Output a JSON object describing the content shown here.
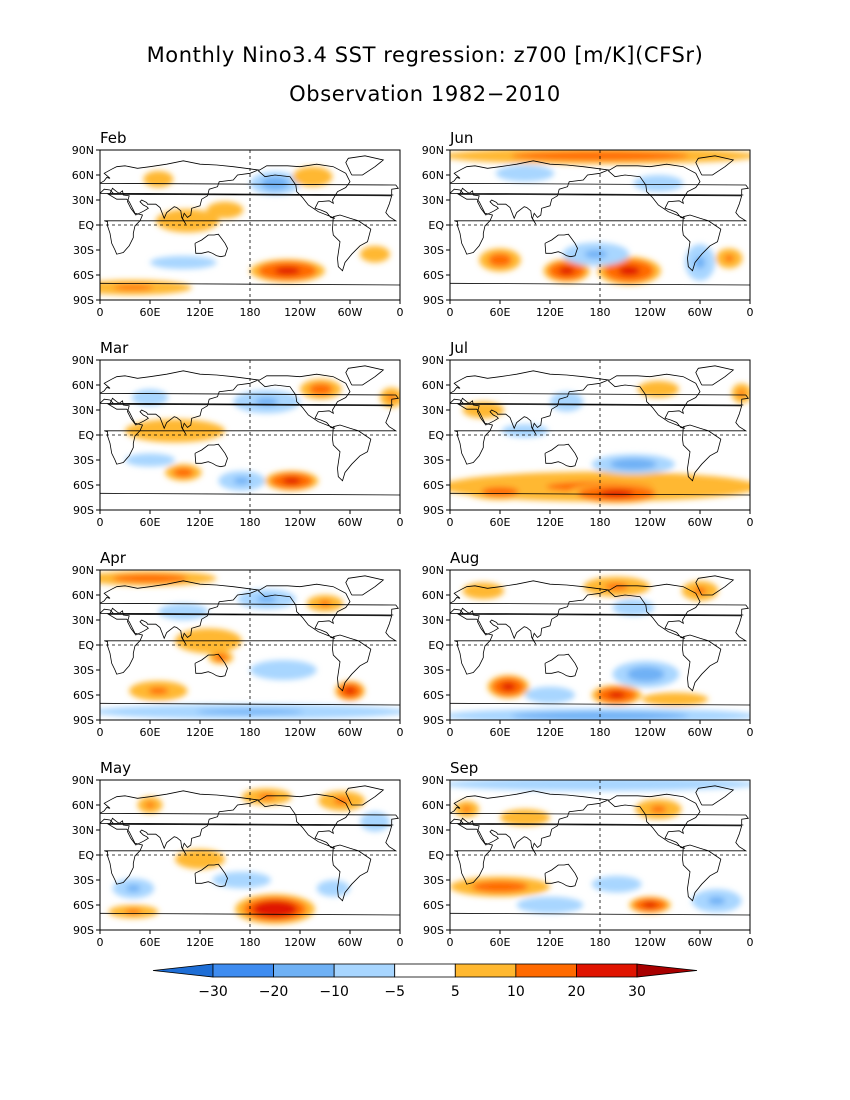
{
  "chart_data": {
    "type": "heatmap",
    "title": "Monthly Nino3.4 SST regression: z700 [m/K](CFSr)",
    "subtitle": "Observation 1982−2010",
    "x_tick_labels": [
      "0",
      "60E",
      "120E",
      "180",
      "120W",
      "60W",
      "0"
    ],
    "y_tick_labels": [
      "90N",
      "60N",
      "30N",
      "EQ",
      "30S",
      "60S",
      "90S"
    ],
    "xlim": [
      0,
      360
    ],
    "ylim": [
      -90,
      90
    ],
    "reference_lines": [
      "EQ",
      "180"
    ],
    "colorbar": {
      "tick_labels": [
        "−30",
        "−20",
        "−10",
        "−5",
        "5",
        "10",
        "20",
        "30"
      ],
      "levels": [
        -30,
        -20,
        -10,
        -5,
        5,
        10,
        20,
        30
      ],
      "colors": [
        "#1e6ed6",
        "#3e8cf0",
        "#6fb1f5",
        "#a8d6ff",
        "#ffffff",
        "#ffb830",
        "#ff6a00",
        "#e01400",
        "#a80000"
      ]
    },
    "panels": [
      {
        "label": "Feb",
        "anomalies": [
          {
            "lon": 105,
            "lat": 5,
            "rlon": 38,
            "rlat": 14,
            "v": 8
          },
          {
            "lon": 150,
            "lat": 18,
            "rlon": 22,
            "rlat": 10,
            "v": 6
          },
          {
            "lon": 210,
            "lat": 50,
            "rlon": 30,
            "rlat": 14,
            "v": -14
          },
          {
            "lon": 255,
            "lat": 58,
            "rlon": 24,
            "rlat": 12,
            "v": 9
          },
          {
            "lon": 70,
            "lat": 55,
            "rlon": 18,
            "rlat": 10,
            "v": 7
          },
          {
            "lon": 225,
            "lat": -55,
            "rlon": 45,
            "rlat": 14,
            "v": 23
          },
          {
            "lon": 40,
            "lat": -75,
            "rlon": 70,
            "rlat": 9,
            "v": 10
          },
          {
            "lon": 100,
            "lat": -45,
            "rlon": 40,
            "rlat": 8,
            "v": -6
          },
          {
            "lon": 330,
            "lat": -35,
            "rlon": 18,
            "rlat": 10,
            "v": 7
          }
        ]
      },
      {
        "label": "Jun",
        "anomalies": [
          {
            "lon": 180,
            "lat": 83,
            "rlon": 190,
            "rlat": 10,
            "v": 13
          },
          {
            "lon": 60,
            "lat": -42,
            "rlon": 25,
            "rlat": 14,
            "v": 18
          },
          {
            "lon": 140,
            "lat": -55,
            "rlon": 28,
            "rlat": 14,
            "v": 21
          },
          {
            "lon": 215,
            "lat": -55,
            "rlon": 38,
            "rlat": 17,
            "v": 24
          },
          {
            "lon": 335,
            "lat": -40,
            "rlon": 16,
            "rlat": 12,
            "v": 12
          },
          {
            "lon": 175,
            "lat": -35,
            "rlon": 40,
            "rlat": 14,
            "v": -12
          },
          {
            "lon": 300,
            "lat": -45,
            "rlon": 18,
            "rlat": 22,
            "v": -11
          },
          {
            "lon": 250,
            "lat": 50,
            "rlon": 30,
            "rlat": 10,
            "v": -10
          },
          {
            "lon": 90,
            "lat": 62,
            "rlon": 35,
            "rlat": 10,
            "v": -8
          }
        ]
      },
      {
        "label": "Mar",
        "anomalies": [
          {
            "lon": 90,
            "lat": 5,
            "rlon": 60,
            "rlat": 14,
            "v": 7
          },
          {
            "lon": 200,
            "lat": 40,
            "rlon": 40,
            "rlat": 14,
            "v": -12
          },
          {
            "lon": 265,
            "lat": 55,
            "rlon": 25,
            "rlat": 12,
            "v": 14
          },
          {
            "lon": 350,
            "lat": 45,
            "rlon": 14,
            "rlat": 12,
            "v": 12
          },
          {
            "lon": 230,
            "lat": -55,
            "rlon": 32,
            "rlat": 12,
            "v": 22
          },
          {
            "lon": 100,
            "lat": -45,
            "rlon": 22,
            "rlat": 10,
            "v": 14
          },
          {
            "lon": 170,
            "lat": -55,
            "rlon": 28,
            "rlat": 12,
            "v": -12
          },
          {
            "lon": 60,
            "lat": -30,
            "rlon": 30,
            "rlat": 8,
            "v": -6
          },
          {
            "lon": 60,
            "lat": 45,
            "rlon": 22,
            "rlat": 10,
            "v": -8
          }
        ]
      },
      {
        "label": "Jul",
        "anomalies": [
          {
            "lon": 180,
            "lat": -62,
            "rlon": 190,
            "rlat": 18,
            "v": 12
          },
          {
            "lon": 200,
            "lat": -70,
            "rlon": 60,
            "rlat": 12,
            "v": 22
          },
          {
            "lon": 60,
            "lat": -68,
            "rlon": 40,
            "rlat": 10,
            "v": 14
          },
          {
            "lon": 220,
            "lat": -35,
            "rlon": 50,
            "rlat": 12,
            "v": -14
          },
          {
            "lon": 140,
            "lat": 40,
            "rlon": 20,
            "rlat": 12,
            "v": -10
          },
          {
            "lon": 40,
            "lat": 30,
            "rlon": 25,
            "rlat": 10,
            "v": 7
          },
          {
            "lon": 250,
            "lat": 55,
            "rlon": 25,
            "rlat": 10,
            "v": 7
          },
          {
            "lon": 350,
            "lat": 50,
            "rlon": 12,
            "rlat": 12,
            "v": 10
          },
          {
            "lon": 90,
            "lat": 5,
            "rlon": 28,
            "rlat": 8,
            "v": -6
          }
        ]
      },
      {
        "label": "Apr",
        "anomalies": [
          {
            "lon": 60,
            "lat": 80,
            "rlon": 80,
            "rlat": 9,
            "v": 14
          },
          {
            "lon": 200,
            "lat": 55,
            "rlon": 35,
            "rlat": 12,
            "v": -11
          },
          {
            "lon": 270,
            "lat": 50,
            "rlon": 22,
            "rlat": 10,
            "v": 12
          },
          {
            "lon": 130,
            "lat": 5,
            "rlon": 40,
            "rlat": 15,
            "v": 7
          },
          {
            "lon": 145,
            "lat": -15,
            "rlon": 15,
            "rlat": 8,
            "v": 14
          },
          {
            "lon": 300,
            "lat": -55,
            "rlon": 18,
            "rlat": 12,
            "v": 20
          },
          {
            "lon": 70,
            "lat": -55,
            "rlon": 35,
            "rlat": 12,
            "v": 12
          },
          {
            "lon": 180,
            "lat": -80,
            "rlon": 190,
            "rlat": 9,
            "v": -12
          },
          {
            "lon": 220,
            "lat": -30,
            "rlon": 40,
            "rlat": 12,
            "v": -10
          },
          {
            "lon": 100,
            "lat": 40,
            "rlon": 30,
            "rlat": 10,
            "v": -7
          }
        ]
      },
      {
        "label": "Aug",
        "anomalies": [
          {
            "lon": 70,
            "lat": -50,
            "rlon": 25,
            "rlat": 14,
            "v": 22
          },
          {
            "lon": 200,
            "lat": -60,
            "rlon": 30,
            "rlat": 12,
            "v": 20
          },
          {
            "lon": 235,
            "lat": -35,
            "rlon": 40,
            "rlat": 16,
            "v": -15
          },
          {
            "lon": 180,
            "lat": -85,
            "rlon": 190,
            "rlat": 9,
            "v": -13
          },
          {
            "lon": 120,
            "lat": -60,
            "rlon": 30,
            "rlat": 10,
            "v": -10
          },
          {
            "lon": 200,
            "lat": 70,
            "rlon": 40,
            "rlat": 12,
            "v": 12
          },
          {
            "lon": 300,
            "lat": 65,
            "rlon": 22,
            "rlat": 12,
            "v": 10
          },
          {
            "lon": 40,
            "lat": 65,
            "rlon": 25,
            "rlat": 10,
            "v": 8
          },
          {
            "lon": 270,
            "lat": -65,
            "rlon": 40,
            "rlat": 8,
            "v": 8
          },
          {
            "lon": 220,
            "lat": 45,
            "rlon": 25,
            "rlat": 10,
            "v": -8
          }
        ]
      },
      {
        "label": "May",
        "anomalies": [
          {
            "lon": 210,
            "lat": -65,
            "rlon": 48,
            "rlat": 18,
            "v": 25
          },
          {
            "lon": 60,
            "lat": 60,
            "rlon": 15,
            "rlat": 10,
            "v": 12
          },
          {
            "lon": 200,
            "lat": 70,
            "rlon": 30,
            "rlat": 10,
            "v": 12
          },
          {
            "lon": 290,
            "lat": 65,
            "rlon": 28,
            "rlat": 12,
            "v": 10
          },
          {
            "lon": 120,
            "lat": -5,
            "rlon": 30,
            "rlat": 12,
            "v": 7
          },
          {
            "lon": 40,
            "lat": -40,
            "rlon": 25,
            "rlat": 12,
            "v": -11
          },
          {
            "lon": 170,
            "lat": -30,
            "rlon": 35,
            "rlat": 10,
            "v": -7
          },
          {
            "lon": 280,
            "lat": -40,
            "rlon": 20,
            "rlat": 10,
            "v": -10
          },
          {
            "lon": 40,
            "lat": -68,
            "rlon": 30,
            "rlat": 8,
            "v": 10
          },
          {
            "lon": 330,
            "lat": 40,
            "rlon": 18,
            "rlat": 12,
            "v": -8
          }
        ]
      },
      {
        "label": "Sep",
        "anomalies": [
          {
            "lon": 60,
            "lat": -38,
            "rlon": 60,
            "rlat": 12,
            "v": 13
          },
          {
            "lon": 240,
            "lat": -60,
            "rlon": 25,
            "rlat": 10,
            "v": 21
          },
          {
            "lon": 320,
            "lat": -55,
            "rlon": 30,
            "rlat": 14,
            "v": -12
          },
          {
            "lon": 180,
            "lat": 85,
            "rlon": 190,
            "rlat": 8,
            "v": -10
          },
          {
            "lon": 250,
            "lat": 55,
            "rlon": 28,
            "rlat": 12,
            "v": 10
          },
          {
            "lon": 20,
            "lat": 55,
            "rlon": 15,
            "rlat": 10,
            "v": 12
          },
          {
            "lon": 120,
            "lat": -60,
            "rlon": 40,
            "rlat": 10,
            "v": -9
          },
          {
            "lon": 200,
            "lat": -35,
            "rlon": 30,
            "rlat": 10,
            "v": -8
          },
          {
            "lon": 90,
            "lat": 45,
            "rlon": 30,
            "rlat": 10,
            "v": 6
          }
        ]
      }
    ]
  }
}
